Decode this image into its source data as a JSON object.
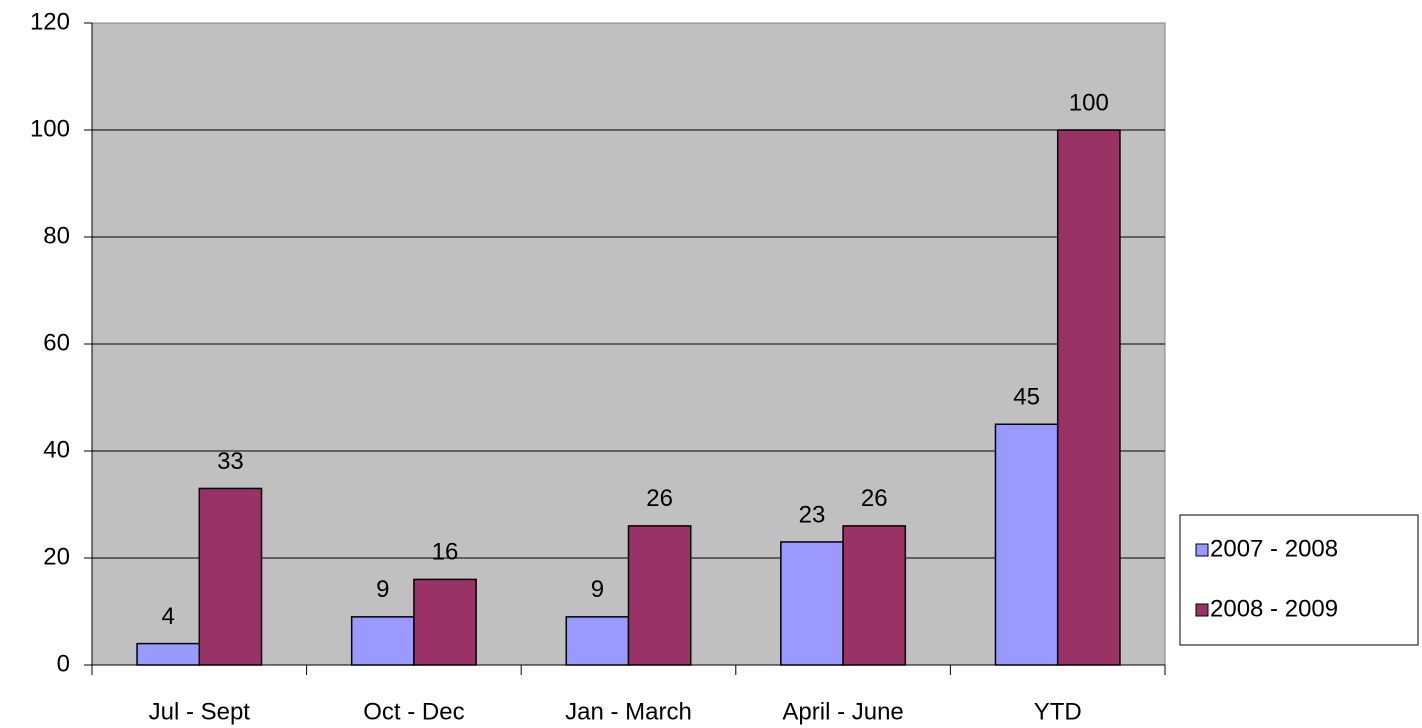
{
  "chart_data": {
    "type": "bar",
    "categories": [
      "Jul - Sept",
      "Oct - Dec",
      "Jan - March",
      "April - June",
      "YTD"
    ],
    "series": [
      {
        "name": "2007 - 2008",
        "color": "#9999ff",
        "values": [
          4,
          9,
          9,
          23,
          45
        ]
      },
      {
        "name": "2008 - 2009",
        "color": "#993366",
        "values": [
          33,
          16,
          26,
          26,
          100
        ]
      }
    ],
    "ylim": [
      0,
      120
    ],
    "yticks": [
      0,
      20,
      40,
      60,
      80,
      100,
      120
    ],
    "grid": true,
    "legend": "right",
    "data_labels": true
  }
}
